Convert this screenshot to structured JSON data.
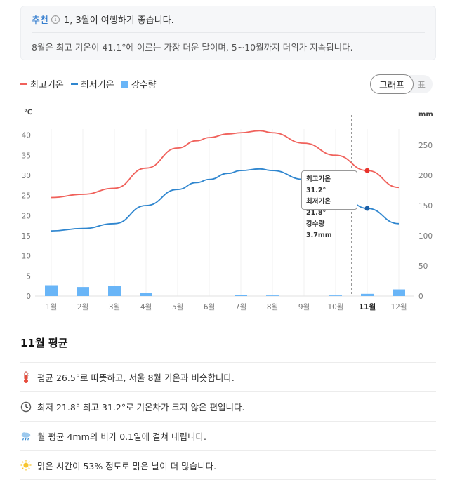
{
  "recommend": {
    "tag": "추천",
    "info_glyph": "i",
    "text": "1, 3월이 여행하기 좋습니다.",
    "description": "8월은 최고 기온이 41.1°에 이르는 가장 더운 달이며, 5~10월까지 더위가 지속됩니다."
  },
  "legend": {
    "max_temp": "최고기온",
    "min_temp": "최저기온",
    "rain": "강수량"
  },
  "toggle": {
    "graph": "그래프",
    "table": "표"
  },
  "colors": {
    "max": "#f0615b",
    "min": "#2f86cf",
    "rain": "#69b5f7"
  },
  "chart_data": {
    "type": "line",
    "categories": [
      "1월",
      "2월",
      "3월",
      "4월",
      "5월",
      "6월",
      "7월",
      "8월",
      "9월",
      "10월",
      "11월",
      "12월"
    ],
    "selected_index": 10,
    "left_axis": {
      "unit": "℃",
      "range": [
        0,
        45
      ],
      "ticks": [
        0,
        5,
        10,
        15,
        20,
        25,
        30,
        35,
        40
      ]
    },
    "right_axis": {
      "unit": "mm",
      "range": [
        0,
        300
      ],
      "ticks": [
        0,
        50,
        100,
        150,
        200,
        250
      ]
    },
    "series": [
      {
        "name": "최고기온",
        "axis": "left",
        "type": "line",
        "x": [
          1,
          2,
          3,
          4,
          5,
          5.6,
          6,
          6.6,
          7,
          7.6,
          8,
          9,
          10,
          11,
          12
        ],
        "values": [
          24.5,
          25.3,
          26.8,
          31.8,
          36.8,
          38.6,
          39.4,
          40.3,
          40.6,
          41.1,
          40.6,
          38.0,
          35.0,
          31.2,
          27.0
        ]
      },
      {
        "name": "최저기온",
        "axis": "left",
        "type": "line",
        "x": [
          1,
          2,
          3,
          4,
          5,
          5.6,
          6,
          6.6,
          7,
          7.6,
          8,
          9,
          10,
          11,
          12
        ],
        "values": [
          16.2,
          16.8,
          18.0,
          22.5,
          26.5,
          28.2,
          29.0,
          30.5,
          31.2,
          31.6,
          31.2,
          29.0,
          26.5,
          21.8,
          18.0
        ]
      },
      {
        "name": "강수량",
        "axis": "right",
        "type": "bar",
        "x": [
          1,
          2,
          3,
          4,
          5,
          6,
          7,
          8,
          9,
          10,
          11,
          12
        ],
        "values": [
          18,
          15,
          17,
          5,
          0,
          0,
          2,
          1,
          0,
          1,
          3.7,
          11
        ]
      }
    ],
    "tooltip": {
      "max": "최고기온 31.2°",
      "min": "최저기온 21.8°",
      "rain": "강수량 3.7mm"
    }
  },
  "average": {
    "title": "11월 평균",
    "facts": [
      {
        "icon": "thermometer-icon",
        "text": "평균 26.5°로 따뜻하고, 서울 8월 기온과 비슷합니다."
      },
      {
        "icon": "clock-icon",
        "text": "최저 21.8° 최고 31.2°로 기온차가 크지 않은 편입니다."
      },
      {
        "icon": "rain-cloud-icon",
        "text": "월 평균 4mm의 비가 0.1일에 걸쳐 내립니다."
      },
      {
        "icon": "sun-icon",
        "text": "맑은 시간이 53% 정도로 맑은 날이 더 많습니다."
      }
    ]
  }
}
